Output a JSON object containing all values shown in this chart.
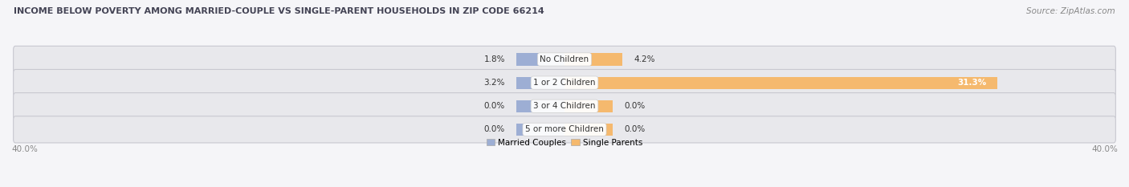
{
  "title": "INCOME BELOW POVERTY AMONG MARRIED-COUPLE VS SINGLE-PARENT HOUSEHOLDS IN ZIP CODE 66214",
  "source": "Source: ZipAtlas.com",
  "categories": [
    "No Children",
    "1 or 2 Children",
    "3 or 4 Children",
    "5 or more Children"
  ],
  "married_couples": [
    1.8,
    3.2,
    0.0,
    0.0
  ],
  "single_parents": [
    4.2,
    31.3,
    0.0,
    0.0
  ],
  "married_color": "#9daed4",
  "single_color": "#f5b96e",
  "xlim": 40.0,
  "min_bar_width": 3.5,
  "legend_labels": [
    "Married Couples",
    "Single Parents"
  ],
  "axis_label_left": "40.0%",
  "axis_label_right": "40.0%",
  "row_bg_color": "#e8e8ec",
  "row_border_color": "#c8c8d0",
  "fig_bg_color": "#f5f5f8",
  "title_color": "#444455",
  "source_color": "#888888",
  "label_color": "#333333",
  "value_color": "#333333",
  "white_text_threshold": 10.0
}
